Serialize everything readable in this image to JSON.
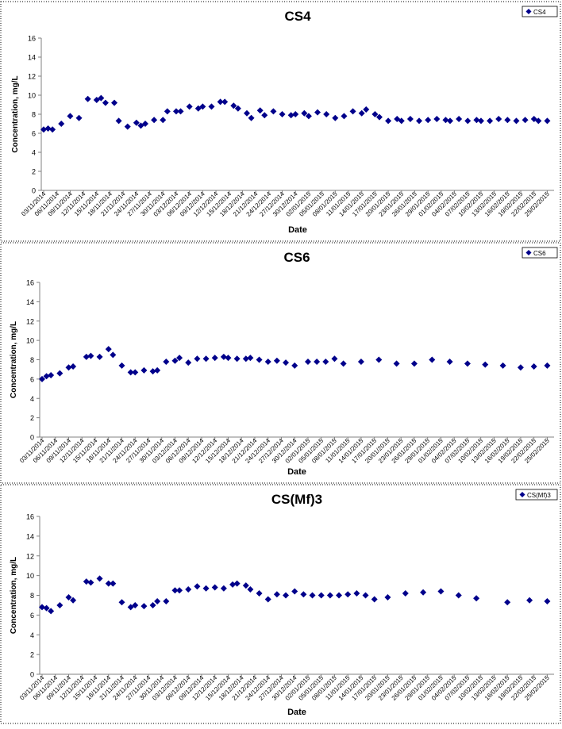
{
  "chart_data": [
    {
      "type": "scatter",
      "title": "CS4",
      "xlabel": "Date",
      "ylabel": "Concentration, mg/L",
      "ylim": [
        0,
        16
      ],
      "yticks": [
        0,
        2,
        4,
        6,
        8,
        10,
        12,
        14,
        16
      ],
      "legend": "top-right",
      "grid": false,
      "marker": "diamond",
      "color": "#00008B",
      "xtick_labels": [
        "03/11/2014",
        "06/11/2014",
        "09/11/2014",
        "12/11/2014",
        "15/11/2014",
        "18/11/2014",
        "21/11/2014",
        "24/11/2014",
        "27/11/2014",
        "30/11/2014",
        "03/12/2014",
        "06/12/2014",
        "09/12/2014",
        "12/12/2014",
        "15/12/2014",
        "18/12/2014",
        "21/12/2014",
        "24/12/2014",
        "27/12/2014",
        "30/12/2014",
        "02/01/2015",
        "05/01/2015",
        "08/01/2015",
        "11/01/2015",
        "14/01/2015",
        "17/01/2015",
        "20/01/2015",
        "23/01/2015",
        "26/01/2015",
        "29/01/2015",
        "01/02/2015",
        "04/02/2015",
        "07/02/2015",
        "10/02/2015",
        "13/02/2015",
        "16/02/2015",
        "19/02/2015",
        "22/02/2015",
        "25/02/2015"
      ],
      "series": [
        {
          "name": "CS4",
          "x": [
            "03/11/2014",
            "04/11/2014",
            "05/11/2014",
            "07/11/2014",
            "09/11/2014",
            "11/11/2014",
            "13/11/2014",
            "15/11/2014",
            "16/11/2014",
            "17/11/2014",
            "19/11/2014",
            "20/11/2014",
            "22/11/2014",
            "24/11/2014",
            "25/11/2014",
            "26/11/2014",
            "28/11/2014",
            "30/11/2014",
            "01/12/2014",
            "03/12/2014",
            "04/12/2014",
            "06/12/2014",
            "08/12/2014",
            "09/12/2014",
            "11/12/2014",
            "13/12/2014",
            "14/12/2014",
            "16/12/2014",
            "17/12/2014",
            "19/12/2014",
            "20/12/2014",
            "22/12/2014",
            "23/12/2014",
            "25/12/2014",
            "27/12/2014",
            "29/12/2014",
            "30/12/2014",
            "01/01/2015",
            "02/01/2015",
            "04/01/2015",
            "06/01/2015",
            "08/01/2015",
            "10/01/2015",
            "12/01/2015",
            "14/01/2015",
            "15/01/2015",
            "17/01/2015",
            "18/01/2015",
            "20/01/2015",
            "22/01/2015",
            "23/01/2015",
            "25/01/2015",
            "27/01/2015",
            "29/01/2015",
            "31/01/2015",
            "02/02/2015",
            "03/02/2015",
            "05/02/2015",
            "07/02/2015",
            "09/02/2015",
            "10/02/2015",
            "12/02/2015",
            "14/02/2015",
            "16/02/2015",
            "18/02/2015",
            "20/02/2015",
            "22/02/2015",
            "23/02/2015",
            "25/02/2015"
          ],
          "y": [
            6.4,
            6.5,
            6.4,
            7.0,
            7.8,
            7.6,
            9.6,
            9.5,
            9.7,
            9.2,
            9.2,
            7.3,
            6.7,
            7.1,
            6.8,
            7.0,
            7.4,
            7.4,
            8.3,
            8.3,
            8.3,
            8.8,
            8.6,
            8.8,
            8.8,
            9.3,
            9.3,
            8.9,
            8.6,
            8.1,
            7.6,
            8.4,
            7.9,
            8.3,
            8.0,
            7.9,
            8.0,
            8.1,
            7.8,
            8.2,
            8.0,
            7.6,
            7.8,
            8.3,
            8.1,
            8.5,
            8.0,
            7.7,
            7.3,
            7.5,
            7.3,
            7.5,
            7.3,
            7.4,
            7.5,
            7.4,
            7.3,
            7.5,
            7.3,
            7.4,
            7.3,
            7.3,
            7.5,
            7.4,
            7.3,
            7.4,
            7.5,
            7.3,
            7.3
          ]
        }
      ]
    },
    {
      "type": "scatter",
      "title": "CS6",
      "xlabel": "Date",
      "ylabel": "Concentration, mg/L",
      "ylim": [
        0,
        16
      ],
      "yticks": [
        0,
        2,
        4,
        6,
        8,
        10,
        12,
        14,
        16
      ],
      "legend": "top-right",
      "grid": false,
      "marker": "diamond",
      "color": "#00008B",
      "xtick_labels": [
        "03/11/2014",
        "06/11/2014",
        "09/11/2014",
        "12/11/2014",
        "15/11/2014",
        "18/11/2014",
        "21/11/2014",
        "24/11/2014",
        "27/11/2014",
        "30/11/2014",
        "03/12/2014",
        "06/12/2014",
        "09/12/2014",
        "12/12/2014",
        "15/12/2014",
        "18/12/2014",
        "21/12/2014",
        "24/12/2014",
        "27/12/2014",
        "30/12/2014",
        "02/01/2015",
        "05/01/2015",
        "08/01/2015",
        "11/01/2015",
        "14/01/2015",
        "17/01/2015",
        "20/01/2015",
        "23/01/2015",
        "26/01/2015",
        "29/01/2015",
        "01/02/2015",
        "04/02/2015",
        "07/02/2015",
        "10/02/2015",
        "13/02/2015",
        "16/02/2015",
        "19/02/2015",
        "22/02/2015",
        "25/02/2015"
      ],
      "series": [
        {
          "name": "CS6",
          "y": [
            6.0,
            6.3,
            6.4,
            6.6,
            7.2,
            7.3,
            8.3,
            8.4,
            8.3,
            9.1,
            8.5,
            7.4,
            6.7,
            6.7,
            6.9,
            6.8,
            6.9,
            7.8,
            7.9,
            8.2,
            7.7,
            8.1,
            8.1,
            8.2,
            8.3,
            8.2,
            8.1,
            8.1,
            8.2,
            8.0,
            7.8,
            7.9,
            7.7,
            7.4,
            7.8,
            7.8,
            7.8,
            8.1,
            7.6,
            7.8,
            8.0,
            7.6,
            7.6,
            8.0,
            7.8,
            7.6,
            7.5,
            7.4,
            7.2,
            7.3,
            7.4
          ],
          "x": [
            "03/11/2014",
            "04/11/2014",
            "05/11/2014",
            "07/11/2014",
            "09/11/2014",
            "10/11/2014",
            "13/11/2014",
            "14/11/2014",
            "16/11/2014",
            "18/11/2014",
            "19/11/2014",
            "21/11/2014",
            "23/11/2014",
            "24/11/2014",
            "26/11/2014",
            "28/11/2014",
            "29/11/2014",
            "01/12/2014",
            "03/12/2014",
            "04/12/2014",
            "06/12/2014",
            "08/12/2014",
            "10/12/2014",
            "12/12/2014",
            "14/12/2014",
            "15/12/2014",
            "17/12/2014",
            "19/12/2014",
            "20/12/2014",
            "22/12/2014",
            "24/12/2014",
            "26/12/2014",
            "28/12/2014",
            "30/12/2014",
            "02/01/2015",
            "04/01/2015",
            "06/01/2015",
            "08/01/2015",
            "10/01/2015",
            "14/01/2015",
            "18/01/2015",
            "22/01/2015",
            "26/01/2015",
            "30/01/2015",
            "03/02/2015",
            "07/02/2015",
            "11/02/2015",
            "15/02/2015",
            "19/02/2015",
            "22/02/2015",
            "25/02/2015"
          ]
        }
      ]
    },
    {
      "type": "scatter",
      "title": "CS(Mf)3",
      "xlabel": "Date",
      "ylabel": "Concentration, mg/L",
      "ylim": [
        0,
        16
      ],
      "yticks": [
        0,
        2,
        4,
        6,
        8,
        10,
        12,
        14,
        16
      ],
      "legend": "top-right",
      "grid": false,
      "marker": "diamond",
      "color": "#00008B",
      "xtick_labels": [
        "03/11/2014",
        "06/11/2014",
        "09/11/2014",
        "12/11/2014",
        "15/11/2014",
        "18/11/2014",
        "21/11/2014",
        "24/11/2014",
        "27/11/2014",
        "30/11/2014",
        "03/12/2014",
        "06/12/2014",
        "09/12/2014",
        "12/12/2014",
        "15/12/2014",
        "18/12/2014",
        "21/12/2014",
        "24/12/2014",
        "27/12/2014",
        "30/12/2014",
        "02/01/2015",
        "05/01/2015",
        "08/01/2015",
        "11/01/2015",
        "14/01/2015",
        "17/01/2015",
        "20/01/2015",
        "23/01/2015",
        "26/01/2015",
        "29/01/2015",
        "01/02/2015",
        "04/02/2015",
        "07/02/2015",
        "10/02/2015",
        "13/02/2015",
        "16/02/2015",
        "19/02/2015",
        "22/02/2015",
        "25/02/2015"
      ],
      "series": [
        {
          "name": "CS(Mf)3",
          "y": [
            6.8,
            6.7,
            6.4,
            7.0,
            7.8,
            7.5,
            9.4,
            9.3,
            9.7,
            9.2,
            9.2,
            7.3,
            6.8,
            7.0,
            6.9,
            7.0,
            7.4,
            7.4,
            8.5,
            8.5,
            8.6,
            8.9,
            8.7,
            8.8,
            8.7,
            9.1,
            9.2,
            9.0,
            8.6,
            8.2,
            7.6,
            8.1,
            8.0,
            8.4,
            8.1,
            8.0,
            8.0,
            8.0,
            8.0,
            8.1,
            8.2,
            8.0,
            7.6,
            7.8,
            8.2,
            8.3,
            8.4,
            8.0,
            7.7,
            7.3,
            7.5,
            7.4
          ],
          "x": [
            "03/11/2014",
            "04/11/2014",
            "05/11/2014",
            "07/11/2014",
            "09/11/2014",
            "10/11/2014",
            "13/11/2014",
            "14/11/2014",
            "16/11/2014",
            "18/11/2014",
            "19/11/2014",
            "21/11/2014",
            "23/11/2014",
            "24/11/2014",
            "26/11/2014",
            "28/11/2014",
            "29/11/2014",
            "01/12/2014",
            "03/12/2014",
            "04/12/2014",
            "06/12/2014",
            "08/12/2014",
            "10/12/2014",
            "12/12/2014",
            "14/12/2014",
            "16/12/2014",
            "17/12/2014",
            "19/12/2014",
            "20/12/2014",
            "22/12/2014",
            "24/12/2014",
            "26/12/2014",
            "28/12/2014",
            "30/12/2014",
            "01/01/2015",
            "03/01/2015",
            "05/01/2015",
            "07/01/2015",
            "09/01/2015",
            "11/01/2015",
            "13/01/2015",
            "15/01/2015",
            "17/01/2015",
            "20/01/2015",
            "24/01/2015",
            "28/01/2015",
            "01/02/2015",
            "05/02/2015",
            "09/02/2015",
            "16/02/2015",
            "21/02/2015",
            "25/02/2015"
          ]
        }
      ]
    }
  ]
}
